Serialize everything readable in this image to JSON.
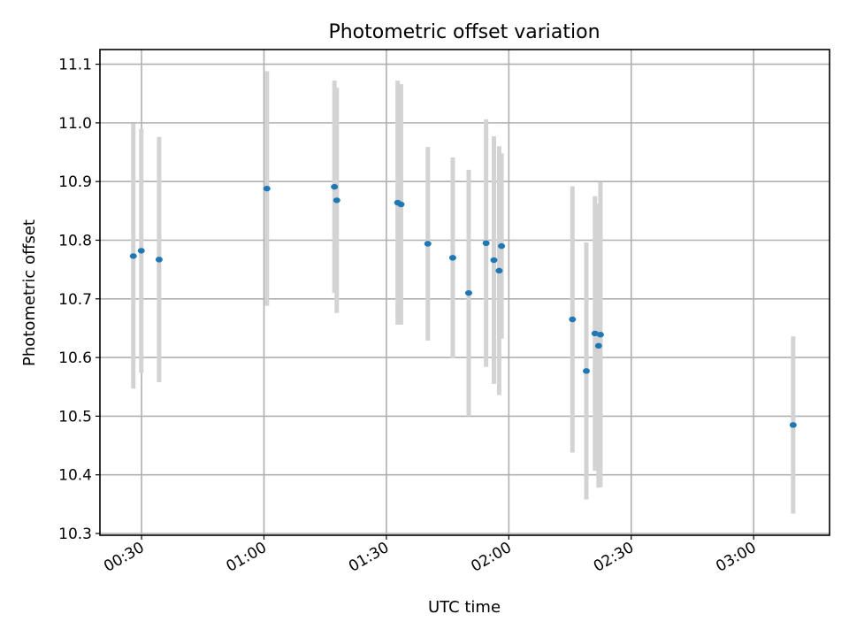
{
  "chart_data": {
    "type": "scatter",
    "title": "Photometric offset variation",
    "xlabel": "UTC time",
    "ylabel": "Photometric offset",
    "xlim": [
      "00:19:48",
      "03:18:36"
    ],
    "ylim": [
      10.297,
      11.125
    ],
    "x_ticks": [
      "00:30",
      "01:00",
      "01:30",
      "02:00",
      "02:30",
      "03:00"
    ],
    "y_ticks": [
      "10.3",
      "10.4",
      "10.5",
      "10.6",
      "10.7",
      "10.8",
      "10.9",
      "11.0",
      "11.1"
    ],
    "grid": true,
    "error_bars": true,
    "colors": {
      "points": "#1f77b4",
      "errorbars": "#d3d3d3"
    },
    "points": [
      {
        "x": "00:27:59",
        "y": 10.773,
        "yerr": 0.226
      },
      {
        "x": "00:29:56",
        "y": 10.782,
        "yerr": 0.208
      },
      {
        "x": "00:34:18",
        "y": 10.767,
        "yerr": 0.209
      },
      {
        "x": "01:00:43",
        "y": 10.888,
        "yerr": 0.2
      },
      {
        "x": "01:17:16",
        "y": 10.891,
        "yerr": 0.181
      },
      {
        "x": "01:17:50",
        "y": 10.868,
        "yerr": 0.192
      },
      {
        "x": "01:32:46",
        "y": 10.864,
        "yerr": 0.208
      },
      {
        "x": "01:33:35",
        "y": 10.861,
        "yerr": 0.205
      },
      {
        "x": "01:40:09",
        "y": 10.794,
        "yerr": 0.165
      },
      {
        "x": "01:46:16",
        "y": 10.77,
        "yerr": 0.171
      },
      {
        "x": "01:50:10",
        "y": 10.71,
        "yerr": 0.21
      },
      {
        "x": "01:54:26",
        "y": 10.795,
        "yerr": 0.211
      },
      {
        "x": "01:56:21",
        "y": 10.766,
        "yerr": 0.211
      },
      {
        "x": "01:57:38",
        "y": 10.748,
        "yerr": 0.212
      },
      {
        "x": "01:58:13",
        "y": 10.79,
        "yerr": 0.158
      },
      {
        "x": "02:15:36",
        "y": 10.665,
        "yerr": 0.227
      },
      {
        "x": "02:19:00",
        "y": 10.577,
        "yerr": 0.219
      },
      {
        "x": "02:21:07",
        "y": 10.641,
        "yerr": 0.234
      },
      {
        "x": "02:22:00",
        "y": 10.62,
        "yerr": 0.242
      },
      {
        "x": "02:22:27",
        "y": 10.639,
        "yerr": 0.26
      },
      {
        "x": "03:09:41",
        "y": 10.485,
        "yerr": 0.151
      }
    ]
  }
}
